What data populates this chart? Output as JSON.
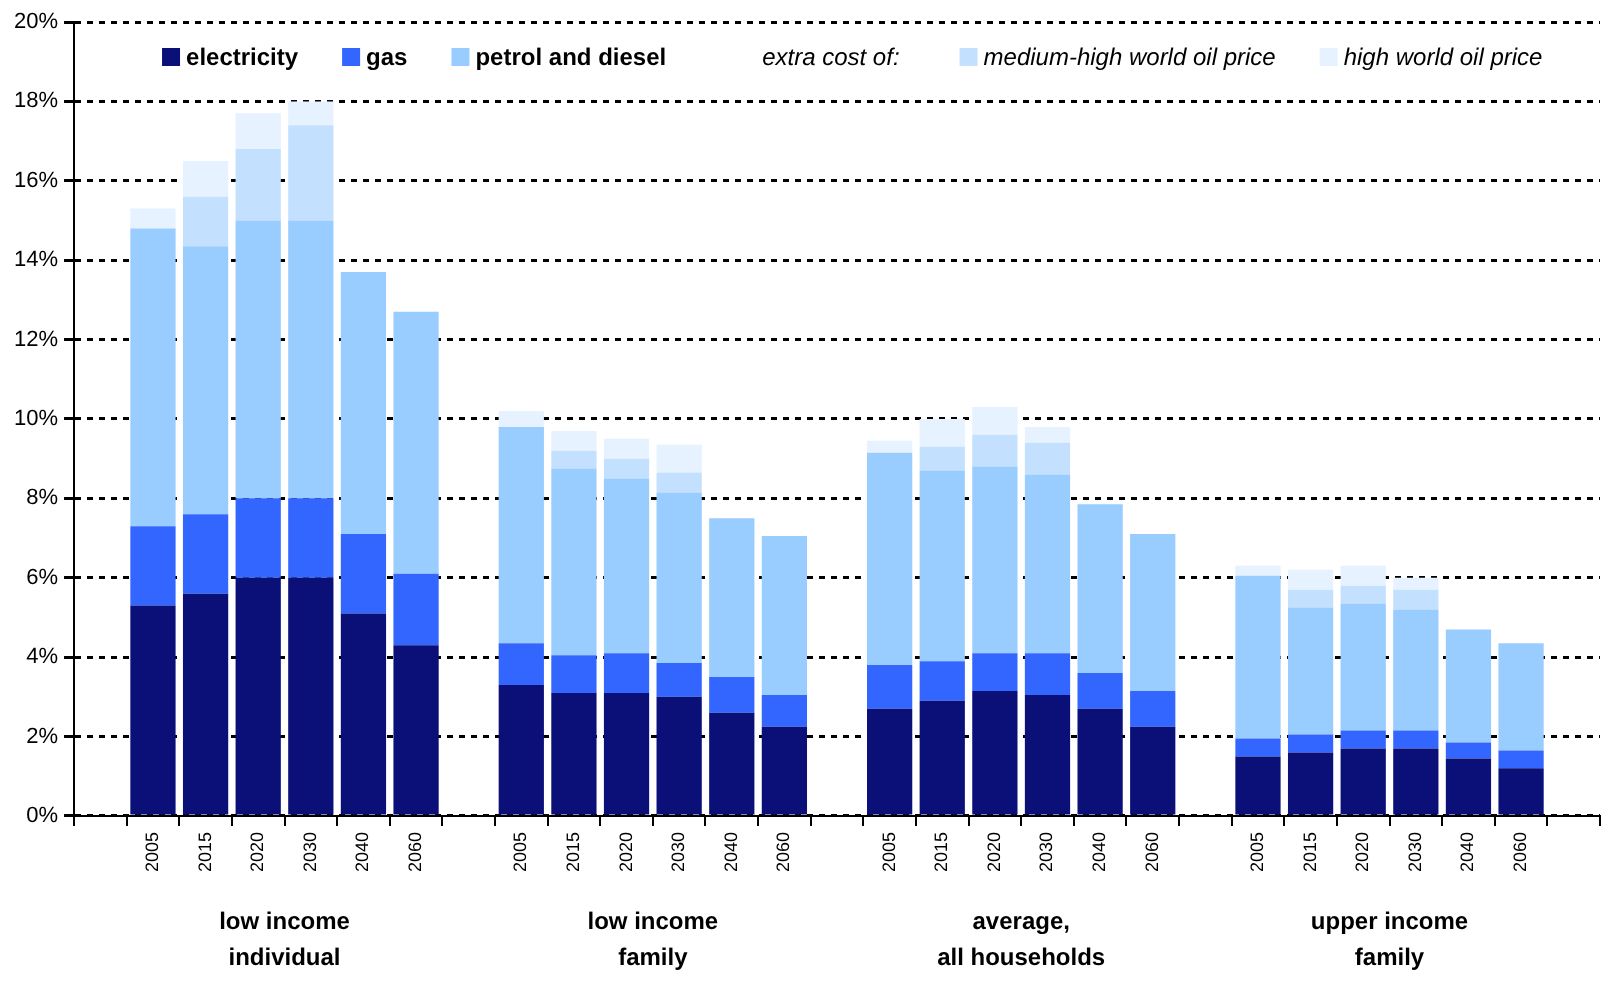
{
  "chart_data": {
    "type": "bar",
    "stacked": true,
    "categories": [
      null,
      "2005",
      "2015",
      "2020",
      "2030",
      "2040",
      "2060",
      null,
      "2005",
      "2015",
      "2020",
      "2030",
      "2040",
      "2060",
      null,
      "2005",
      "2015",
      "2020",
      "2030",
      "2040",
      "2060",
      null,
      "2005",
      "2015",
      "2020",
      "2030",
      "2040",
      "2060",
      null
    ],
    "series": [
      {
        "name": "electricity",
        "color": "#0a1078",
        "values": [
          null,
          5.3,
          5.6,
          6.0,
          6.0,
          5.1,
          4.3,
          null,
          3.3,
          3.1,
          3.1,
          3.0,
          2.6,
          2.25,
          null,
          2.7,
          2.9,
          3.15,
          3.05,
          2.7,
          2.25,
          null,
          1.5,
          1.6,
          1.7,
          1.7,
          1.45,
          1.2,
          null
        ]
      },
      {
        "name": "gas",
        "color": "#3366ff",
        "values": [
          null,
          2.0,
          2.0,
          2.0,
          2.0,
          2.0,
          1.8,
          null,
          1.05,
          0.95,
          1.0,
          0.85,
          0.9,
          0.8,
          null,
          1.1,
          1.0,
          0.95,
          1.05,
          0.9,
          0.9,
          null,
          0.45,
          0.45,
          0.45,
          0.45,
          0.4,
          0.45,
          null
        ]
      },
      {
        "name": "petrol and diesel",
        "color": "#99ccff",
        "values": [
          null,
          7.5,
          6.75,
          7.0,
          7.0,
          6.6,
          6.6,
          null,
          5.45,
          4.7,
          4.4,
          4.3,
          4.0,
          4.0,
          null,
          5.35,
          4.8,
          4.7,
          4.5,
          4.25,
          3.95,
          null,
          4.1,
          3.2,
          3.2,
          3.05,
          2.85,
          2.7,
          null
        ]
      },
      {
        "name": "medium-high world oil price",
        "color": "#c4e0ff",
        "values": [
          null,
          null,
          1.25,
          1.8,
          2.4,
          null,
          null,
          null,
          null,
          0.45,
          0.5,
          0.5,
          null,
          null,
          null,
          null,
          0.6,
          0.8,
          0.8,
          null,
          null,
          null,
          null,
          0.45,
          0.45,
          0.5,
          null,
          null,
          null
        ]
      },
      {
        "name": "high world oil price",
        "color": "#e6f2ff",
        "values": [
          null,
          0.5,
          0.9,
          0.9,
          0.6,
          null,
          null,
          null,
          0.4,
          0.5,
          0.5,
          0.7,
          null,
          null,
          null,
          0.3,
          0.7,
          0.7,
          0.4,
          null,
          null,
          null,
          0.25,
          0.5,
          0.5,
          0.3,
          null,
          null,
          null
        ]
      }
    ],
    "legend": "top",
    "legend_title": "extra cost of:",
    "ylim": [
      0,
      20
    ],
    "yticks": [
      {
        "value": 0,
        "label": "0%"
      },
      {
        "value": 2,
        "label": "2%"
      },
      {
        "value": 4,
        "label": "4%"
      },
      {
        "value": 6,
        "label": "6%"
      },
      {
        "value": 8,
        "label": "8%"
      },
      {
        "value": 10,
        "label": "10%"
      },
      {
        "value": 12,
        "label": "12%"
      },
      {
        "value": 14,
        "label": "14%"
      },
      {
        "value": 16,
        "label": "16%"
      },
      {
        "value": 18,
        "label": "18%"
      },
      {
        "value": 20,
        "label": "20%"
      }
    ],
    "grid": "y",
    "annotations": [
      "low income\nindividual",
      "low income\nfamily",
      "average,\nall households",
      "upper income\nfamily"
    ]
  }
}
